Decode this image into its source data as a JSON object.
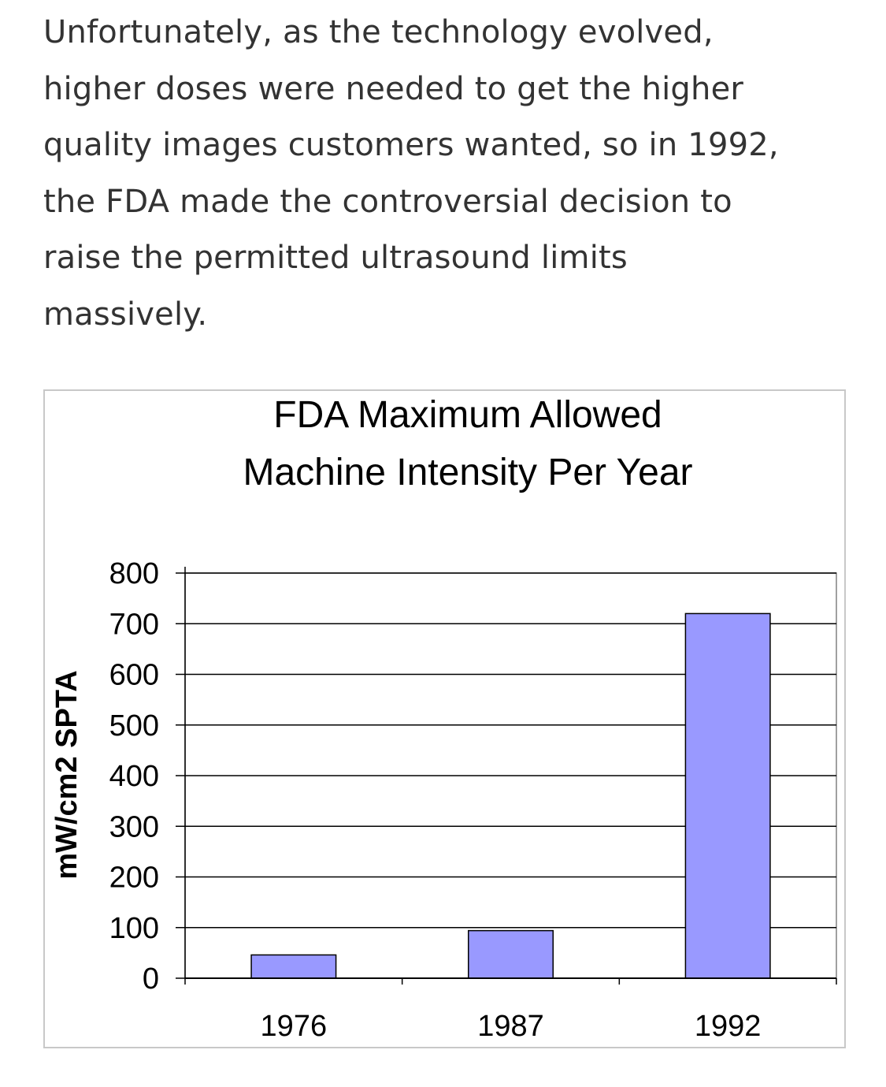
{
  "article": {
    "lines": [
      "Unfortunately, as the technology evolved,",
      "higher doses were needed to get the higher",
      "quality images customers wanted, so in 1992,",
      "the FDA made the controversial decision to",
      "raise the permitted ultrasound limits",
      "massively."
    ]
  },
  "chart_data": {
    "type": "bar",
    "title_lines": [
      "FDA Maximum Allowed",
      "Machine Intensity Per Year"
    ],
    "ylabel": "mW/cm2 SPTA",
    "xlabel": "",
    "categories": [
      "1976",
      "1987",
      "1992"
    ],
    "values": [
      46,
      94,
      720
    ],
    "ylim": [
      0,
      800
    ],
    "yticks": [
      "0",
      "100",
      "200",
      "300",
      "400",
      "500",
      "600",
      "700",
      "800"
    ],
    "grid": true,
    "bar_color": "#9999ff",
    "bar_edge_color": "#000000"
  }
}
